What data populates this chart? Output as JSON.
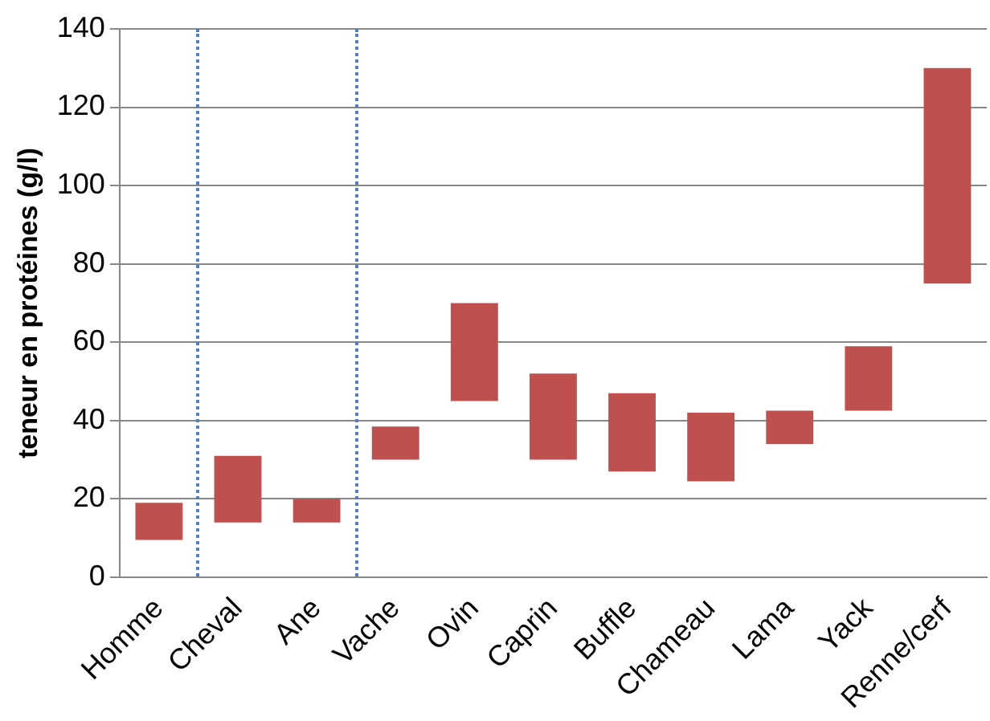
{
  "chart_data": {
    "type": "bar",
    "ylabel": "teneur en protéines (g/l)",
    "categories": [
      "Homme",
      "Cheval",
      "Ane",
      "Vache",
      "Ovin",
      "Caprin",
      "Buffle",
      "Chameau",
      "Lama",
      "Yack",
      "Renne/cerf"
    ],
    "base": [
      9.5,
      14,
      14,
      30,
      45,
      30,
      27,
      24.5,
      34,
      42.5,
      75
    ],
    "values": [
      9.5,
      17,
      6,
      8.5,
      25,
      22,
      20,
      17.5,
      8.5,
      16.5,
      55
    ],
    "color": "#c0504d",
    "ylim": [
      0,
      140
    ],
    "yticks": [
      0,
      20,
      40,
      60,
      80,
      100,
      120,
      140
    ],
    "grid": "y",
    "legend": false
  }
}
